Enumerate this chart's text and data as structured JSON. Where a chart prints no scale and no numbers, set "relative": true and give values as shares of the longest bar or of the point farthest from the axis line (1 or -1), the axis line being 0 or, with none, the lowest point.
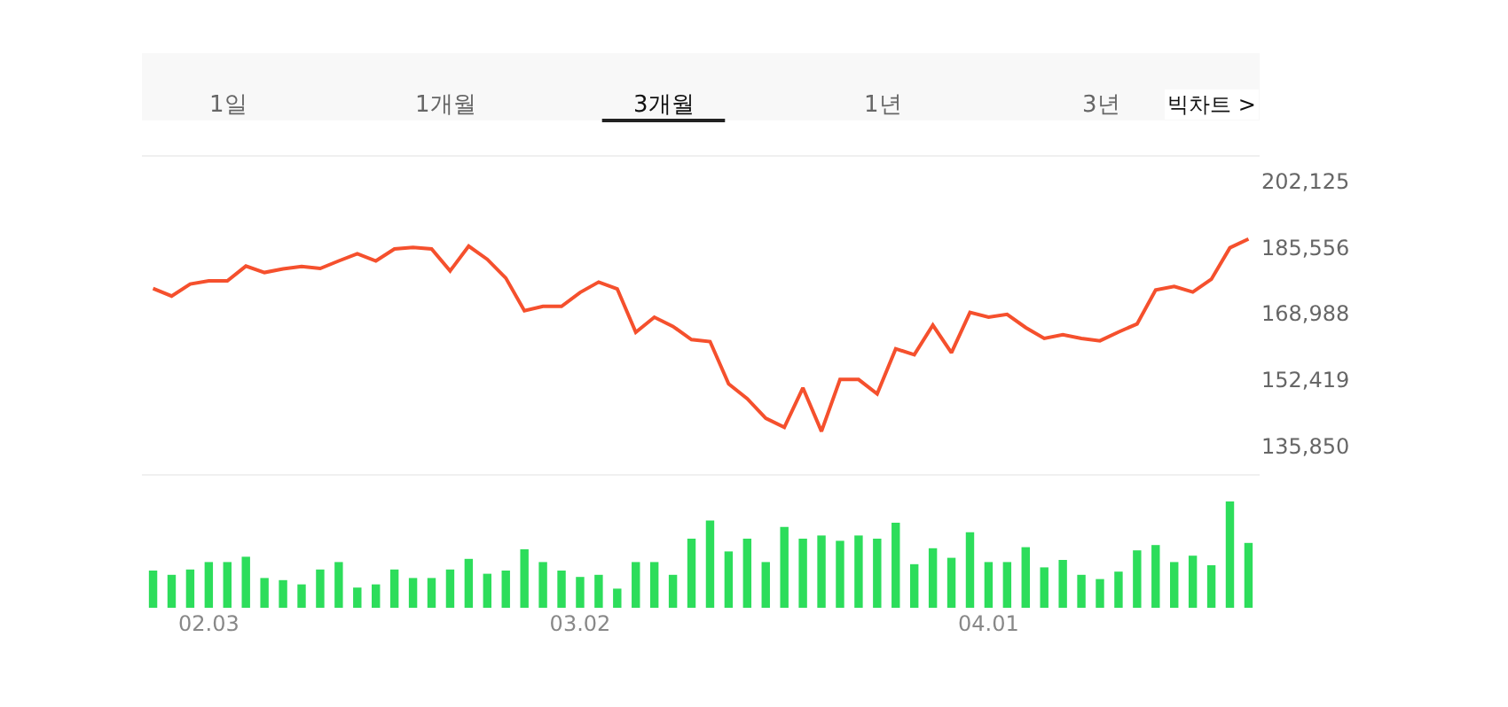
{
  "chart_data": [
    {
      "type": "line",
      "annotations": [
        "1일",
        "1개월",
        "3개월",
        "1년",
        "3년",
        "빅차트 >"
      ],
      "categories": [
        null,
        null,
        null,
        null,
        null,
        null,
        null,
        null,
        null,
        null,
        null,
        null,
        null,
        null,
        null,
        null,
        null,
        null,
        null,
        null,
        null,
        null,
        null,
        null,
        null,
        null,
        null,
        null,
        null,
        null,
        null,
        null,
        null,
        null,
        null,
        null,
        null,
        null,
        null,
        null,
        null,
        null,
        null,
        null,
        null,
        null,
        null,
        null,
        null,
        null,
        null,
        null,
        null,
        null,
        null,
        null,
        null,
        null,
        null,
        null
      ],
      "series": [
        {
          "color": "#f5502d",
          "values": [
            175300,
            173400,
            176400,
            177200,
            177200,
            180900,
            179300,
            180200,
            180800,
            180300,
            182200,
            184000,
            182200,
            185200,
            185600,
            185200,
            179700,
            185900,
            182600,
            177900,
            169700,
            170800,
            170800,
            174300,
            176900,
            175200,
            164300,
            168100,
            165800,
            162500,
            162000,
            151400,
            147700,
            142800,
            140500,
            150400,
            139500,
            152500,
            152500,
            148900,
            160200,
            158700,
            166100,
            159200,
            169300,
            168100,
            168800,
            165500,
            162800,
            163700,
            162800,
            162200,
            164400,
            166400,
            174900,
            175800,
            174400,
            177600,
            185500,
            187700
          ]
        }
      ],
      "ylim": [
        128600,
        208500
      ],
      "yticks": [
        {
          "value": 135850,
          "label": "135,850"
        },
        {
          "value": 152419,
          "label": "152,419"
        },
        {
          "value": 168988,
          "label": "168,988"
        },
        {
          "value": 185556,
          "label": "185,556"
        },
        {
          "value": 202125,
          "label": "202,125"
        }
      ],
      "marker": "none",
      "line_style": "solid"
    },
    {
      "type": "bar",
      "relative": true,
      "categories": [
        null,
        null,
        null,
        "02.03",
        null,
        null,
        null,
        null,
        null,
        null,
        null,
        null,
        null,
        null,
        null,
        null,
        null,
        null,
        null,
        null,
        null,
        null,
        null,
        "03.02",
        null,
        null,
        null,
        null,
        null,
        null,
        null,
        null,
        null,
        null,
        null,
        null,
        null,
        null,
        null,
        null,
        null,
        null,
        null,
        null,
        null,
        "04.01",
        null,
        null,
        null,
        null,
        null,
        null,
        null,
        null,
        null,
        null,
        null,
        null,
        null,
        null
      ],
      "series": [
        {
          "color": "#2ddd5b",
          "values": [
            0.35,
            0.31,
            0.36,
            0.43,
            0.43,
            0.48,
            0.28,
            0.26,
            0.22,
            0.36,
            0.43,
            0.19,
            0.22,
            0.36,
            0.28,
            0.28,
            0.36,
            0.46,
            0.32,
            0.35,
            0.55,
            0.43,
            0.35,
            0.29,
            0.31,
            0.18,
            0.43,
            0.43,
            0.31,
            0.65,
            0.82,
            0.53,
            0.65,
            0.43,
            0.76,
            0.65,
            0.68,
            0.63,
            0.68,
            0.65,
            0.8,
            0.41,
            0.56,
            0.47,
            0.71,
            0.43,
            0.43,
            0.57,
            0.38,
            0.45,
            0.31,
            0.27,
            0.34,
            0.54,
            0.59,
            0.43,
            0.49,
            0.4,
            1.0,
            0.61
          ]
        }
      ]
    }
  ]
}
